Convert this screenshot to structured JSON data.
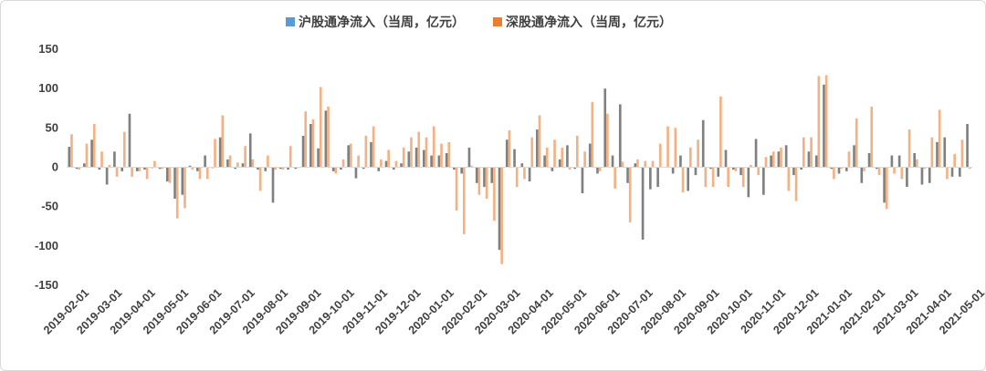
{
  "chart_data": {
    "type": "bar",
    "title": "",
    "xlabel": "",
    "ylabel": "",
    "ylim": [
      -150,
      150
    ],
    "yticks": [
      -150,
      -100,
      -50,
      0,
      50,
      100,
      150
    ],
    "grid": false,
    "legend_placement": "top-center",
    "colors": {
      "sh": "#808080",
      "sz": "#f4b183",
      "sh_legend": "#5b9bd5",
      "sz_legend": "#ed7d31",
      "axis": "#d9d9d9"
    },
    "x_ticks": [
      "2019-02-01",
      "2019-03-01",
      "2019-04-01",
      "2019-05-01",
      "2019-06-01",
      "2019-07-01",
      "2019-08-01",
      "2019-09-01",
      "2019-10-01",
      "2019-11-01",
      "2019-12-01",
      "2020-01-01",
      "2020-02-01",
      "2020-03-01",
      "2020-04-01",
      "2020-05-01",
      "2020-06-01",
      "2020-07-01",
      "2020-08-01",
      "2020-09-01",
      "2020-10-01",
      "2020-11-01",
      "2020-12-01",
      "2021-01-01",
      "2021-02-01",
      "2021-03-01",
      "2021-04-01",
      "2021-05-01"
    ],
    "series": [
      {
        "name": "沪股通净流入（当周，亿元）",
        "values": [
          26,
          -2,
          5,
          35,
          -3,
          -22,
          20,
          -5,
          68,
          -5,
          -3,
          -1,
          -2,
          -18,
          -40,
          -35,
          2,
          -5,
          15,
          -1,
          38,
          10,
          -2,
          5,
          43,
          -3,
          -5,
          -45,
          -2,
          -3,
          -2,
          40,
          55,
          24,
          72,
          -5,
          -3,
          28,
          -14,
          -2,
          32,
          -5,
          8,
          -3,
          5,
          20,
          25,
          22,
          15,
          15,
          18,
          -3,
          -8,
          25,
          -20,
          -25,
          -20,
          -105,
          35,
          23,
          5,
          -18,
          48,
          15,
          -5,
          10,
          28,
          -2,
          -33,
          30,
          -8,
          100,
          15,
          80,
          -20,
          5,
          -92,
          -28,
          -25,
          0,
          -8,
          15,
          -30,
          -10,
          60,
          -2,
          -12,
          22,
          -3,
          -10,
          -38,
          36,
          -35,
          15,
          20,
          28,
          -10,
          -3,
          20,
          15,
          105,
          -2,
          -8,
          -5,
          28,
          -20,
          18,
          -2,
          -45,
          15,
          15,
          -25,
          18,
          -22,
          -20,
          32,
          38,
          -12,
          -12,
          55
        ]
      },
      {
        "name": "深股通净流入（当周，亿元）",
        "values": [
          42,
          -3,
          30,
          55,
          20,
          3,
          -12,
          45,
          -12,
          -5,
          -15,
          8,
          -2,
          -20,
          -65,
          -52,
          -3,
          -15,
          -15,
          36,
          66,
          15,
          6,
          27,
          10,
          -30,
          15,
          -3,
          -3,
          27,
          -1,
          71,
          61,
          102,
          77,
          -8,
          10,
          30,
          15,
          40,
          52,
          10,
          22,
          8,
          25,
          38,
          45,
          38,
          52,
          30,
          32,
          -55,
          -85,
          2,
          -35,
          -40,
          -68,
          -123,
          47,
          -25,
          -15,
          38,
          66,
          25,
          35,
          25,
          -3,
          40,
          20,
          83,
          -5,
          68,
          -27,
          7,
          -70,
          10,
          8,
          8,
          30,
          52,
          50,
          -32,
          25,
          35,
          -25,
          -25,
          90,
          -25,
          -5,
          -25,
          3,
          -10,
          13,
          20,
          25,
          -30,
          -43,
          38,
          38,
          116,
          117,
          -15,
          -2,
          20,
          62,
          -5,
          77,
          -10,
          -53,
          -8,
          -15,
          48,
          10,
          -2,
          38,
          73,
          -15,
          17,
          35,
          -2
        ]
      }
    ]
  }
}
